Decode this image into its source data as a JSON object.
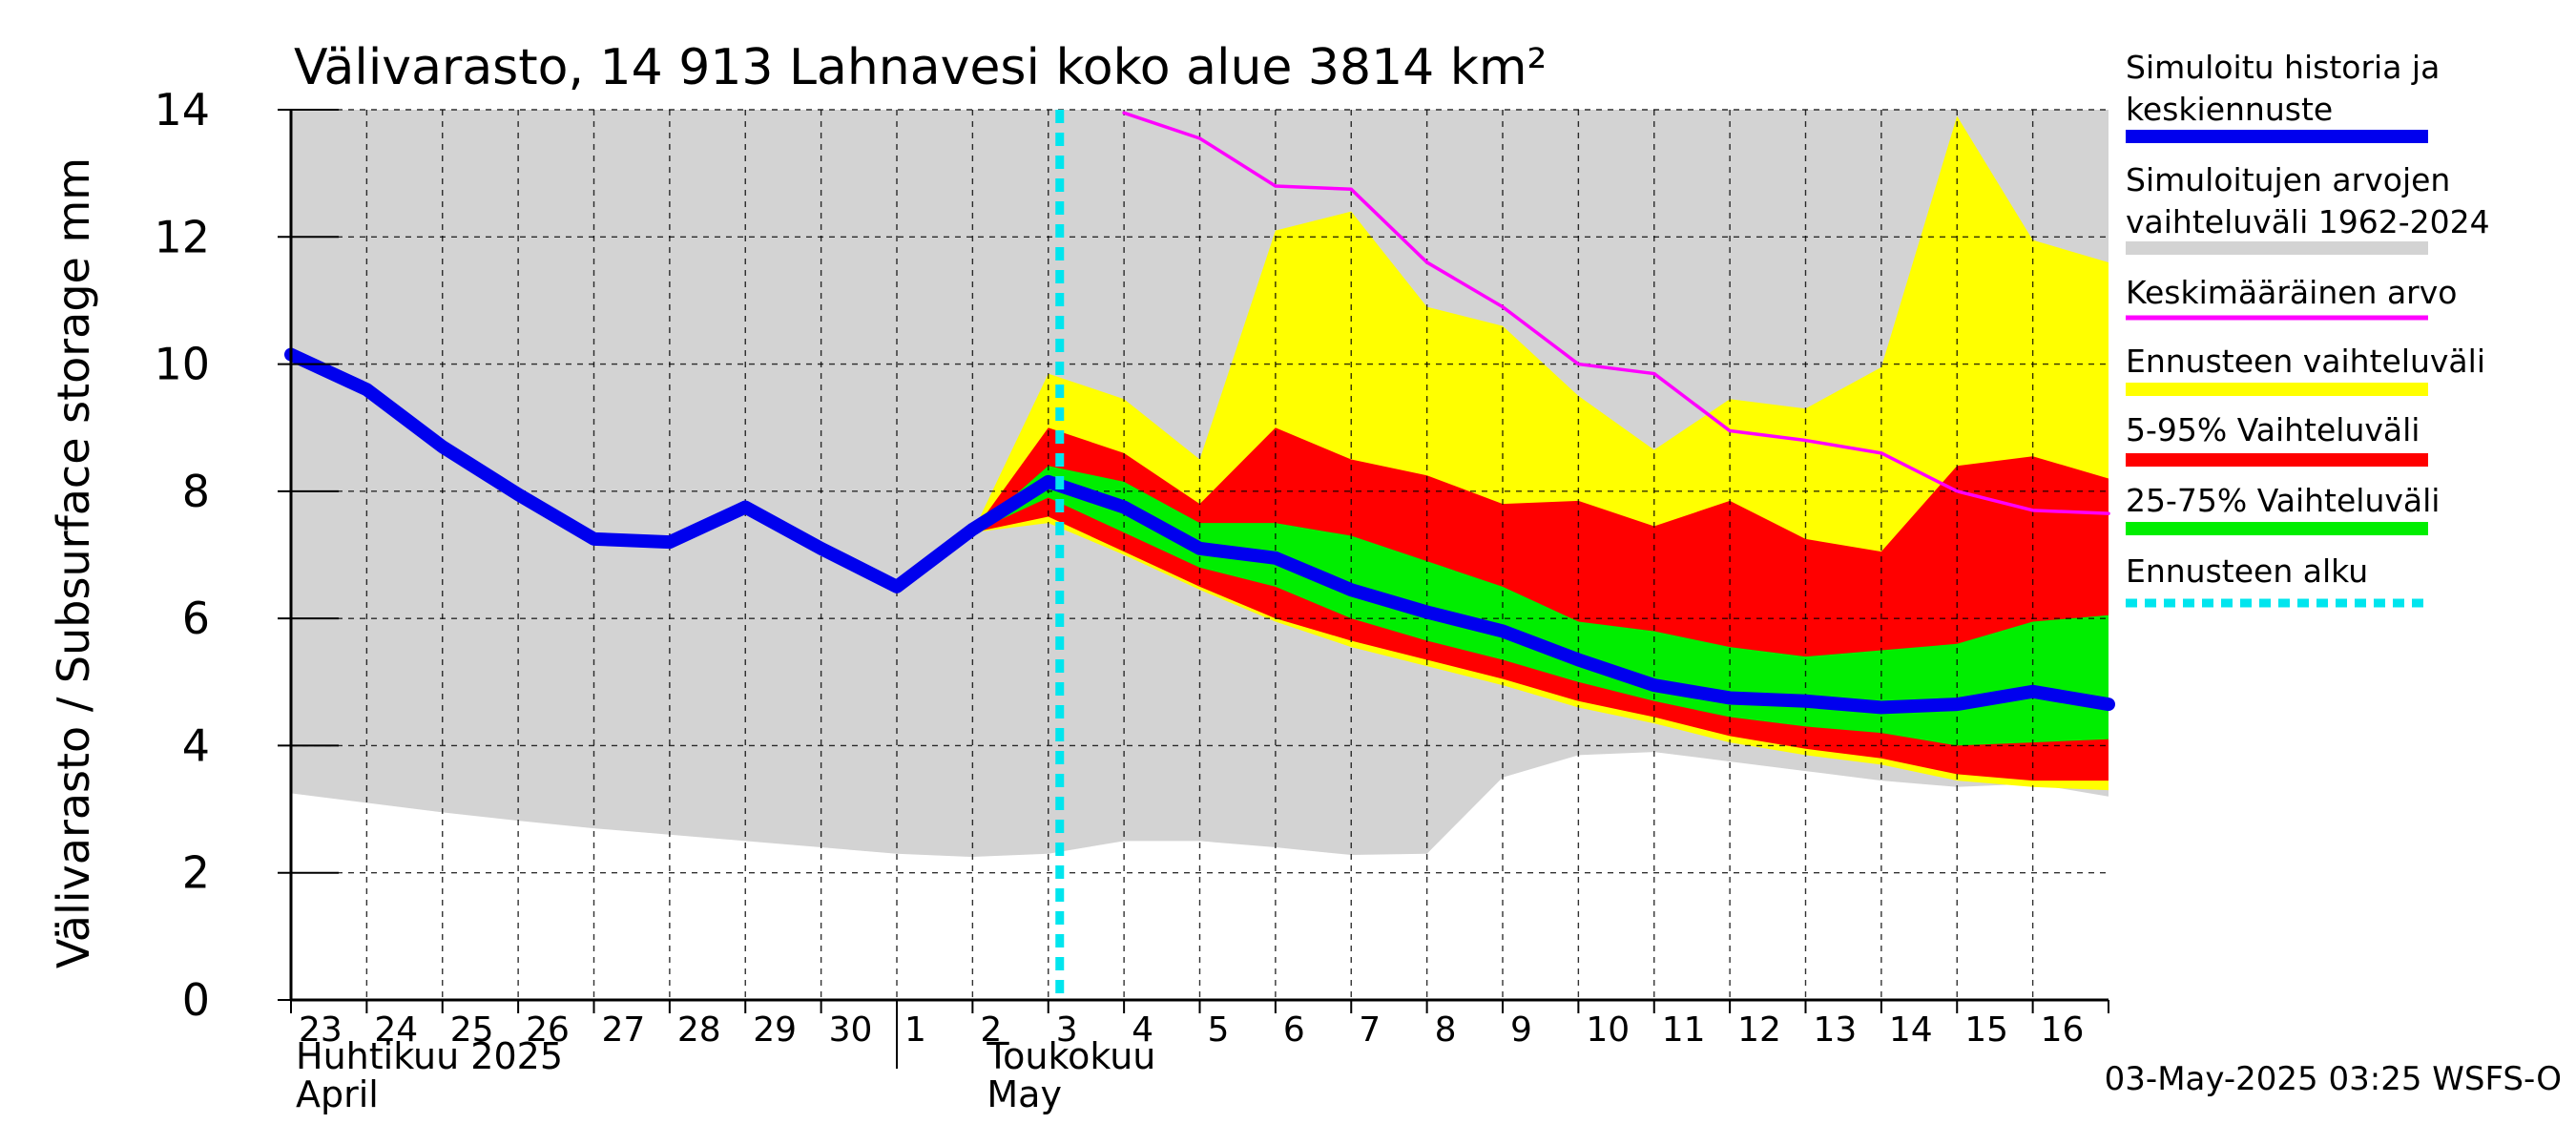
{
  "chart_data": {
    "type": "area",
    "title": "Välivarasto, 14 913 Lahnavesi koko alue 3814 km²",
    "ylabel": "Välivarasto / Subsurface storage  mm",
    "ylim": [
      0,
      14
    ],
    "yticks": [
      0,
      2,
      4,
      6,
      8,
      10,
      12,
      14
    ],
    "grid": true,
    "legend_position": "right",
    "x_day_labels": [
      "23",
      "24",
      "25",
      "26",
      "27",
      "28",
      "29",
      "30",
      "1",
      "2",
      "3",
      "4",
      "5",
      "6",
      "7",
      "8",
      "9",
      "10",
      "11",
      "12",
      "13",
      "14",
      "15",
      "16"
    ],
    "month_labels": [
      {
        "fi": "Huhtikuu  2025",
        "en": "April"
      },
      {
        "fi": "Toukokuu",
        "en": "May"
      }
    ],
    "x_dates": [
      "2025-04-23",
      "2025-04-24",
      "2025-04-25",
      "2025-04-26",
      "2025-04-27",
      "2025-04-28",
      "2025-04-29",
      "2025-04-30",
      "2025-05-01",
      "2025-05-02",
      "2025-05-03",
      "2025-05-04",
      "2025-05-05",
      "2025-05-06",
      "2025-05-07",
      "2025-05-08",
      "2025-05-09",
      "2025-05-10",
      "2025-05-11",
      "2025-05-12",
      "2025-05-13",
      "2025-05-14",
      "2025-05-15",
      "2025-05-16",
      "2025-05-17"
    ],
    "forecast_start": "2025-05-03",
    "series": [
      {
        "name": "Simuloitujen arvojen vaihteluväli 1962-2024",
        "kind": "band",
        "color": "#d3d3d3",
        "upper": [
          14,
          14,
          14,
          14,
          14,
          14,
          14,
          14,
          14,
          14,
          14,
          14,
          14,
          14,
          14,
          14,
          14,
          14,
          14,
          14,
          14,
          14,
          14,
          14,
          14
        ],
        "lower": [
          3.25,
          3.1,
          2.95,
          2.82,
          2.7,
          2.6,
          2.5,
          2.4,
          2.3,
          2.25,
          2.3,
          2.5,
          2.5,
          2.4,
          2.28,
          2.3,
          3.5,
          3.85,
          3.9,
          3.75,
          3.6,
          3.45,
          3.35,
          3.4,
          3.2
        ]
      },
      {
        "name": "Ennusteen vaihteluväli",
        "kind": "band",
        "color": "#ffff00",
        "x_start": 9,
        "upper": [
          7.35,
          9.85,
          9.45,
          8.5,
          12.1,
          12.4,
          10.9,
          10.6,
          9.5,
          8.65,
          9.45,
          9.3,
          9.95,
          13.9,
          11.95,
          11.6
        ],
        "lower": [
          7.35,
          7.5,
          7.0,
          6.45,
          5.95,
          5.55,
          5.25,
          4.95,
          4.6,
          4.35,
          4.05,
          3.85,
          3.7,
          3.45,
          3.35,
          3.3
        ]
      },
      {
        "name": "5-95% Vaihteluväli",
        "kind": "band",
        "color": "#ff0000",
        "x_start": 9,
        "upper": [
          7.35,
          9.0,
          8.6,
          7.8,
          9.0,
          8.5,
          8.25,
          7.8,
          7.85,
          7.45,
          7.85,
          7.25,
          7.05,
          8.4,
          8.55,
          8.2
        ],
        "lower": [
          7.35,
          7.6,
          7.05,
          6.5,
          6.0,
          5.65,
          5.35,
          5.05,
          4.7,
          4.45,
          4.15,
          3.95,
          3.8,
          3.55,
          3.45,
          3.45
        ]
      },
      {
        "name": "25-75% Vaihteluväli",
        "kind": "band",
        "color": "#00ee00",
        "x_start": 9,
        "upper": [
          7.35,
          8.4,
          8.15,
          7.5,
          7.5,
          7.3,
          6.9,
          6.5,
          5.95,
          5.8,
          5.55,
          5.4,
          5.5,
          5.6,
          5.95,
          6.05
        ],
        "lower": [
          7.35,
          7.9,
          7.35,
          6.8,
          6.5,
          6.0,
          5.65,
          5.35,
          5.0,
          4.7,
          4.45,
          4.3,
          4.2,
          4.0,
          4.05,
          4.1
        ]
      },
      {
        "name": "Keskimääräinen arvo",
        "kind": "line",
        "color": "#ff00ff",
        "x_start": 11,
        "values": [
          13.95,
          13.55,
          12.8,
          12.75,
          11.6,
          10.9,
          10.0,
          9.85,
          8.95,
          8.8,
          8.6,
          8.0,
          7.7,
          7.65
        ]
      },
      {
        "name": "Simuloitu historia ja keskiennuste",
        "kind": "line",
        "color": "#0000ee",
        "x_start": 0,
        "values": [
          10.15,
          9.6,
          8.7,
          7.95,
          7.25,
          7.2,
          7.75,
          7.1,
          6.5,
          7.4,
          8.15,
          7.75,
          7.1,
          6.95,
          6.45,
          6.1,
          5.8,
          5.35,
          4.95,
          4.75,
          4.7,
          4.6,
          4.65,
          4.85,
          4.65
        ]
      }
    ],
    "legend": [
      {
        "label": "Simuloitu historia ja keskiennuste",
        "line1": "Simuloitu historia ja",
        "line2": "keskiennuste",
        "color": "#0000ee",
        "style": "thick"
      },
      {
        "label": "Simuloitujen arvojen vaihteluväli 1962-2024",
        "line1": "Simuloitujen arvojen",
        "line2": "vaihteluväli 1962-2024",
        "color": "#d3d3d3",
        "style": "thick"
      },
      {
        "label": "Keskimääräinen arvo",
        "line1": "Keskimääräinen arvo",
        "line2": "",
        "color": "#ff00ff",
        "style": "thin"
      },
      {
        "label": "Ennusteen vaihteluväli",
        "line1": "Ennusteen vaihteluväli",
        "line2": "",
        "color": "#ffff00",
        "style": "thick"
      },
      {
        "label": "5-95% Vaihteluväli",
        "line1": "5-95% Vaihteluväli",
        "line2": "",
        "color": "#ff0000",
        "style": "thick"
      },
      {
        "label": "25-75% Vaihteluväli",
        "line1": "25-75% Vaihteluväli",
        "line2": "",
        "color": "#00ee00",
        "style": "thick"
      },
      {
        "label": "Ennusteen alku",
        "line1": "Ennusteen alku",
        "line2": "",
        "color": "#00e5ee",
        "style": "dashed"
      }
    ],
    "footer": "03-May-2025 03:25 WSFS-O"
  }
}
